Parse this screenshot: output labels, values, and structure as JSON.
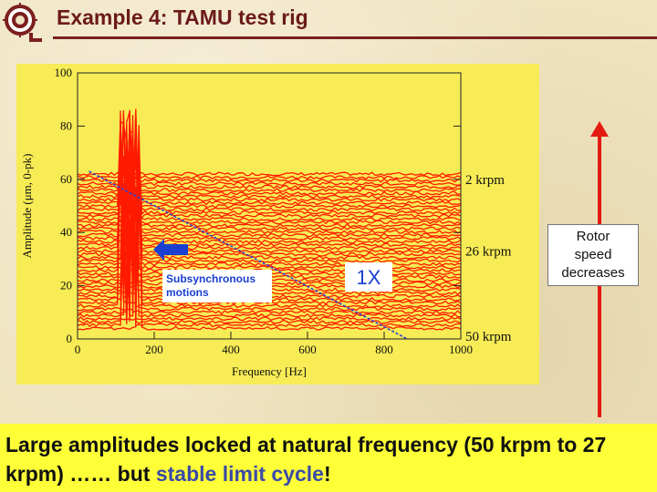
{
  "slide": {
    "title": "Example 4: TAMU test rig",
    "conclusion_part1": "Large amplitudes locked at natural frequency (50 krpm to 27 krpm) …… but ",
    "conclusion_highlight": "stable limit cycle",
    "conclusion_part2": "!"
  },
  "annotations": {
    "subsync_line1": "Subsynchronous",
    "subsync_line2": "motions",
    "one_x": "1X",
    "rotor_line1": "Rotor",
    "rotor_line2": "speed",
    "rotor_line3": "decreases"
  },
  "icons": {
    "logo": "university-seal-icon",
    "left_arrow": "left-arrow-icon",
    "up_arrow": "up-arrow-icon"
  },
  "colors": {
    "trace": "#ff1a00",
    "plot_bg": "#f7ec55",
    "annotation_blue": "#1a3fd1",
    "title": "#6b1a1a",
    "arrow_red": "#e31a10",
    "highlight_blue": "#3a4aa8"
  },
  "chart_data": {
    "type": "line",
    "title": "",
    "xlabel": "Frequency [Hz]",
    "ylabel": "Amplitude (μm, 0-pk)",
    "xlim": [
      0,
      1000
    ],
    "ylim": [
      0,
      100
    ],
    "xticks": [
      0,
      200,
      400,
      600,
      800,
      1000
    ],
    "yticks": [
      0,
      20,
      40,
      60,
      80,
      100
    ],
    "grid": false,
    "waterfall": {
      "num_traces": 49,
      "speed_range_krpm": [
        2,
        50
      ],
      "trace_labels": [
        "2 krpm",
        "26 krpm",
        "50 krpm"
      ],
      "baseline_top_y": 62,
      "baseline_bottom_y": 4,
      "synchronous_1x_line": [
        [
          30,
          63
        ],
        [
          860,
          0
        ]
      ],
      "subsynchronous_peak_hz": [
        110,
        160
      ],
      "subsynchronous_peak_max_y": 87
    }
  }
}
